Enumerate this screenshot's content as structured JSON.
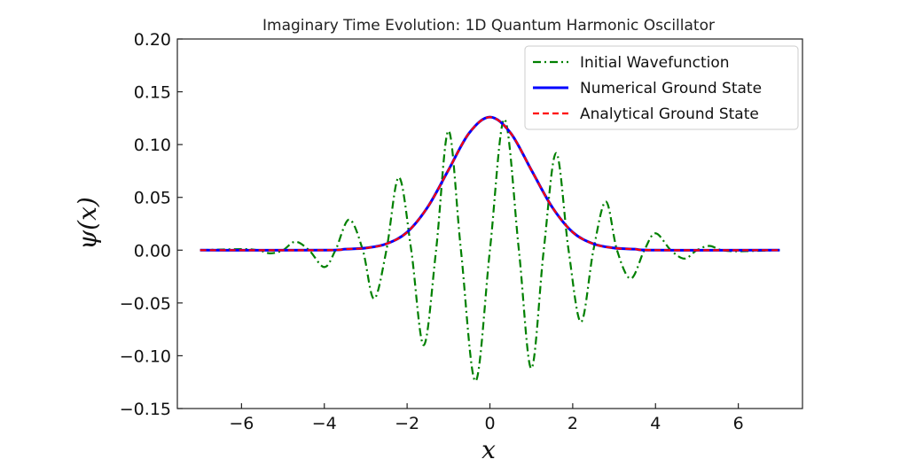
{
  "chart_data": {
    "type": "line",
    "title": "Imaginary Time Evolution: 1D Quantum Harmonic Oscillator",
    "xlabel": "x",
    "ylabel": "ψ(x)",
    "xlim": [
      -7.55,
      7.55
    ],
    "ylim": [
      -0.15,
      0.2
    ],
    "x_ticks": [
      -6,
      -4,
      -2,
      0,
      2,
      4,
      6
    ],
    "x_tick_labels": [
      "−6",
      "−4",
      "−2",
      "0",
      "2",
      "4",
      "6"
    ],
    "y_ticks": [
      -0.15,
      -0.1,
      -0.05,
      0.0,
      0.05,
      0.1,
      0.15,
      0.2
    ],
    "y_tick_labels": [
      "−0.15",
      "−0.10",
      "−0.05",
      "0.00",
      "0.05",
      "0.10",
      "0.15",
      "0.20"
    ],
    "grid": false,
    "legend_position": "top-right",
    "series": [
      {
        "name": "Initial Wavefunction",
        "color": "#008000",
        "linestyle": "dashdot",
        "x": [
          -7.0,
          -6.0,
          -5.6,
          -5.3,
          -5.0,
          -4.7,
          -4.37,
          -4.0,
          -3.73,
          -3.4,
          -3.07,
          -2.8,
          -2.5,
          -2.2,
          -1.9,
          -1.6,
          -1.3,
          -1.0,
          -0.7,
          -0.35,
          0.0,
          0.35,
          0.7,
          1.0,
          1.3,
          1.6,
          1.9,
          2.2,
          2.5,
          2.8,
          3.07,
          3.4,
          3.73,
          4.0,
          4.37,
          4.7,
          5.0,
          5.3,
          5.6,
          6.0,
          7.0
        ],
        "y": [
          0.0,
          0.001,
          0.0,
          -0.003,
          0.0,
          0.008,
          0.0,
          -0.016,
          0.0,
          0.029,
          0.0,
          -0.046,
          0.0,
          0.069,
          0.0,
          -0.09,
          0.0,
          0.113,
          0.0,
          -0.124,
          0.0,
          0.124,
          0.0,
          -0.112,
          0.0,
          0.092,
          0.0,
          -0.068,
          0.0,
          0.046,
          0.0,
          -0.027,
          0.0,
          0.016,
          0.0,
          -0.008,
          0.0,
          0.004,
          0.0,
          -0.001,
          0.0
        ]
      },
      {
        "name": "Numerical Ground State",
        "color": "#0000ff",
        "linestyle": "solid",
        "x": [
          -7.0,
          -4.0,
          -3.5,
          -3.0,
          -2.5,
          -2.0,
          -1.5,
          -1.0,
          -0.5,
          0.0,
          0.5,
          1.0,
          1.5,
          2.0,
          2.5,
          3.0,
          3.5,
          4.0,
          7.0
        ],
        "y": [
          0.0,
          0.0,
          0.001,
          0.002,
          0.006,
          0.017,
          0.041,
          0.076,
          0.111,
          0.126,
          0.111,
          0.076,
          0.041,
          0.017,
          0.006,
          0.002,
          0.001,
          0.0,
          0.0
        ]
      },
      {
        "name": "Analytical Ground State",
        "color": "#ff0000",
        "linestyle": "dashed",
        "x": [
          -7.0,
          -4.0,
          -3.5,
          -3.0,
          -2.5,
          -2.0,
          -1.5,
          -1.0,
          -0.5,
          0.0,
          0.5,
          1.0,
          1.5,
          2.0,
          2.5,
          3.0,
          3.5,
          4.0,
          7.0
        ],
        "y": [
          0.0,
          0.0,
          0.001,
          0.002,
          0.006,
          0.017,
          0.041,
          0.076,
          0.111,
          0.126,
          0.111,
          0.076,
          0.041,
          0.017,
          0.006,
          0.002,
          0.001,
          0.0,
          0.0
        ]
      }
    ]
  }
}
